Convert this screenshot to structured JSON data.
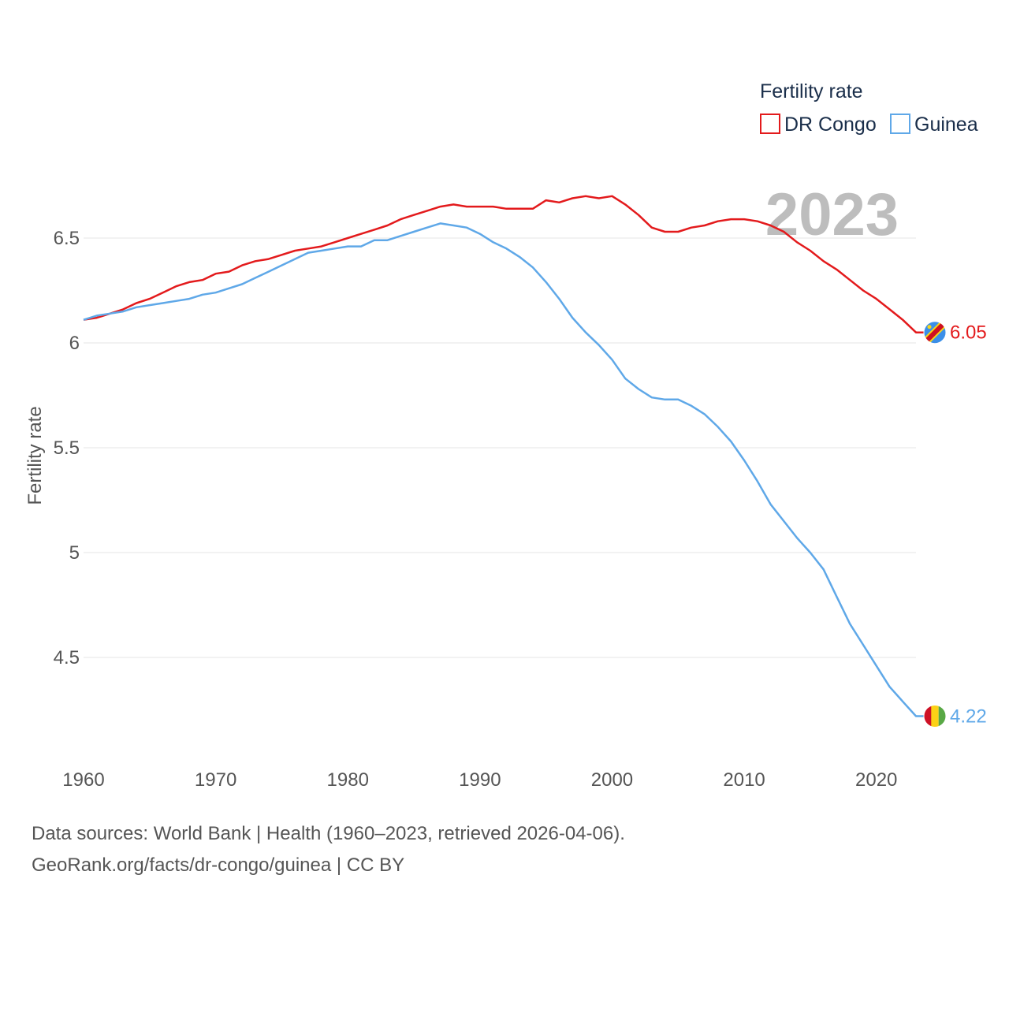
{
  "chart_data": {
    "type": "line",
    "title": "Fertility rate",
    "ylabel": "Fertility rate",
    "xlabel": "",
    "year_display": "2023",
    "xlim": [
      1960,
      2023
    ],
    "ylim": [
      4.05,
      6.85
    ],
    "x_ticks": [
      1960,
      1970,
      1980,
      1990,
      2000,
      2010,
      2020
    ],
    "y_ticks": [
      4.5,
      5,
      5.5,
      6,
      6.5
    ],
    "y_tick_labels": [
      "4.5",
      "5",
      "5.5",
      "6",
      "6.5"
    ],
    "legend_title": "Fertility rate",
    "x": [
      1960,
      1961,
      1962,
      1963,
      1964,
      1965,
      1966,
      1967,
      1968,
      1969,
      1970,
      1971,
      1972,
      1973,
      1974,
      1975,
      1976,
      1977,
      1978,
      1979,
      1980,
      1981,
      1982,
      1983,
      1984,
      1985,
      1986,
      1987,
      1988,
      1989,
      1990,
      1991,
      1992,
      1993,
      1994,
      1995,
      1996,
      1997,
      1998,
      1999,
      2000,
      2001,
      2002,
      2003,
      2004,
      2005,
      2006,
      2007,
      2008,
      2009,
      2010,
      2011,
      2012,
      2013,
      2014,
      2015,
      2016,
      2017,
      2018,
      2019,
      2020,
      2021,
      2022,
      2023
    ],
    "series": [
      {
        "name": "DR Congo",
        "color": "#e31a1c",
        "end_label": "6.05",
        "flag": "dr-congo-flag",
        "values": [
          6.11,
          6.12,
          6.14,
          6.16,
          6.19,
          6.21,
          6.24,
          6.27,
          6.29,
          6.3,
          6.33,
          6.34,
          6.37,
          6.39,
          6.4,
          6.42,
          6.44,
          6.45,
          6.46,
          6.48,
          6.5,
          6.52,
          6.54,
          6.56,
          6.59,
          6.61,
          6.63,
          6.65,
          6.66,
          6.65,
          6.65,
          6.65,
          6.64,
          6.64,
          6.64,
          6.68,
          6.67,
          6.69,
          6.7,
          6.69,
          6.7,
          6.66,
          6.61,
          6.55,
          6.53,
          6.53,
          6.55,
          6.56,
          6.58,
          6.59,
          6.59,
          6.58,
          6.56,
          6.53,
          6.48,
          6.44,
          6.39,
          6.35,
          6.3,
          6.25,
          6.21,
          6.16,
          6.11,
          6.05
        ]
      },
      {
        "name": "Guinea",
        "color": "#5fa8e8",
        "end_label": "4.22",
        "flag": "guinea-flag",
        "values": [
          6.11,
          6.13,
          6.14,
          6.15,
          6.17,
          6.18,
          6.19,
          6.2,
          6.21,
          6.23,
          6.24,
          6.26,
          6.28,
          6.31,
          6.34,
          6.37,
          6.4,
          6.43,
          6.44,
          6.45,
          6.46,
          6.46,
          6.49,
          6.49,
          6.51,
          6.53,
          6.55,
          6.57,
          6.56,
          6.55,
          6.52,
          6.48,
          6.45,
          6.41,
          6.36,
          6.29,
          6.21,
          6.12,
          6.05,
          5.99,
          5.92,
          5.83,
          5.78,
          5.74,
          5.73,
          5.73,
          5.7,
          5.66,
          5.6,
          5.53,
          5.44,
          5.34,
          5.23,
          5.15,
          5.07,
          5.0,
          4.92,
          4.79,
          4.66,
          4.56,
          4.46,
          4.36,
          4.29,
          4.22
        ]
      }
    ]
  },
  "footer": {
    "line1": "Data sources: World Bank | Health (1960–2023, retrieved 2026-04-06).",
    "line2": "GeoRank.org/facts/dr-congo/guinea | CC BY"
  }
}
